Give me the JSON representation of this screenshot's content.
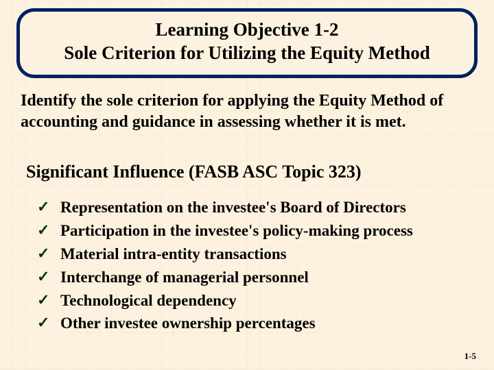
{
  "colors": {
    "background": "#fdf2df",
    "title_border": "#002060",
    "text": "#000000",
    "check": "#003300"
  },
  "title": {
    "line1": "Learning Objective 1-2",
    "line2": "Sole Criterion for Utilizing the Equity Method"
  },
  "body": "Identify the sole criterion for applying the Equity Method of accounting and guidance in assessing whether it is met.",
  "subheading": "Significant Influence  (FASB ASC Topic 323)",
  "bullets": [
    "Representation on the investee's Board of Directors",
    "Participation in the investee's policy-making process",
    "Material intra-entity transactions",
    "Interchange of managerial  personnel",
    "Technological dependency",
    "Other investee ownership percentages"
  ],
  "check_glyph": "✓",
  "page_number": "1-5"
}
